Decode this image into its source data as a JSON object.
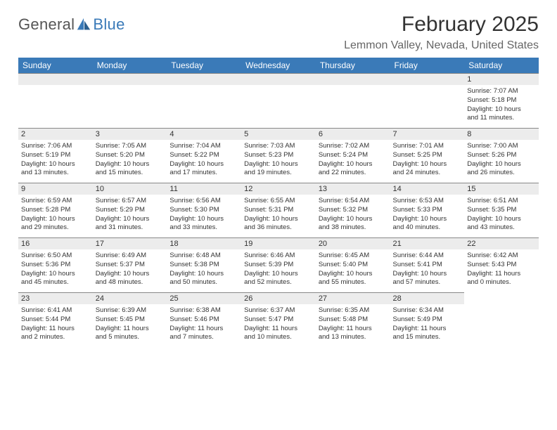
{
  "logo": {
    "text1": "General",
    "text2": "Blue"
  },
  "title": "February 2025",
  "location": "Lemmon Valley, Nevada, United States",
  "colors": {
    "header_bg": "#3a7ab8",
    "header_fg": "#ffffff",
    "daynum_bg": "#ececec",
    "border": "#888888"
  },
  "weekdays": [
    "Sunday",
    "Monday",
    "Tuesday",
    "Wednesday",
    "Thursday",
    "Friday",
    "Saturday"
  ],
  "weeks": [
    [
      {
        "n": ""
      },
      {
        "n": ""
      },
      {
        "n": ""
      },
      {
        "n": ""
      },
      {
        "n": ""
      },
      {
        "n": ""
      },
      {
        "n": "1",
        "sr": "Sunrise: 7:07 AM",
        "ss": "Sunset: 5:18 PM",
        "dl1": "Daylight: 10 hours",
        "dl2": "and 11 minutes."
      }
    ],
    [
      {
        "n": "2",
        "sr": "Sunrise: 7:06 AM",
        "ss": "Sunset: 5:19 PM",
        "dl1": "Daylight: 10 hours",
        "dl2": "and 13 minutes."
      },
      {
        "n": "3",
        "sr": "Sunrise: 7:05 AM",
        "ss": "Sunset: 5:20 PM",
        "dl1": "Daylight: 10 hours",
        "dl2": "and 15 minutes."
      },
      {
        "n": "4",
        "sr": "Sunrise: 7:04 AM",
        "ss": "Sunset: 5:22 PM",
        "dl1": "Daylight: 10 hours",
        "dl2": "and 17 minutes."
      },
      {
        "n": "5",
        "sr": "Sunrise: 7:03 AM",
        "ss": "Sunset: 5:23 PM",
        "dl1": "Daylight: 10 hours",
        "dl2": "and 19 minutes."
      },
      {
        "n": "6",
        "sr": "Sunrise: 7:02 AM",
        "ss": "Sunset: 5:24 PM",
        "dl1": "Daylight: 10 hours",
        "dl2": "and 22 minutes."
      },
      {
        "n": "7",
        "sr": "Sunrise: 7:01 AM",
        "ss": "Sunset: 5:25 PM",
        "dl1": "Daylight: 10 hours",
        "dl2": "and 24 minutes."
      },
      {
        "n": "8",
        "sr": "Sunrise: 7:00 AM",
        "ss": "Sunset: 5:26 PM",
        "dl1": "Daylight: 10 hours",
        "dl2": "and 26 minutes."
      }
    ],
    [
      {
        "n": "9",
        "sr": "Sunrise: 6:59 AM",
        "ss": "Sunset: 5:28 PM",
        "dl1": "Daylight: 10 hours",
        "dl2": "and 29 minutes."
      },
      {
        "n": "10",
        "sr": "Sunrise: 6:57 AM",
        "ss": "Sunset: 5:29 PM",
        "dl1": "Daylight: 10 hours",
        "dl2": "and 31 minutes."
      },
      {
        "n": "11",
        "sr": "Sunrise: 6:56 AM",
        "ss": "Sunset: 5:30 PM",
        "dl1": "Daylight: 10 hours",
        "dl2": "and 33 minutes."
      },
      {
        "n": "12",
        "sr": "Sunrise: 6:55 AM",
        "ss": "Sunset: 5:31 PM",
        "dl1": "Daylight: 10 hours",
        "dl2": "and 36 minutes."
      },
      {
        "n": "13",
        "sr": "Sunrise: 6:54 AM",
        "ss": "Sunset: 5:32 PM",
        "dl1": "Daylight: 10 hours",
        "dl2": "and 38 minutes."
      },
      {
        "n": "14",
        "sr": "Sunrise: 6:53 AM",
        "ss": "Sunset: 5:33 PM",
        "dl1": "Daylight: 10 hours",
        "dl2": "and 40 minutes."
      },
      {
        "n": "15",
        "sr": "Sunrise: 6:51 AM",
        "ss": "Sunset: 5:35 PM",
        "dl1": "Daylight: 10 hours",
        "dl2": "and 43 minutes."
      }
    ],
    [
      {
        "n": "16",
        "sr": "Sunrise: 6:50 AM",
        "ss": "Sunset: 5:36 PM",
        "dl1": "Daylight: 10 hours",
        "dl2": "and 45 minutes."
      },
      {
        "n": "17",
        "sr": "Sunrise: 6:49 AM",
        "ss": "Sunset: 5:37 PM",
        "dl1": "Daylight: 10 hours",
        "dl2": "and 48 minutes."
      },
      {
        "n": "18",
        "sr": "Sunrise: 6:48 AM",
        "ss": "Sunset: 5:38 PM",
        "dl1": "Daylight: 10 hours",
        "dl2": "and 50 minutes."
      },
      {
        "n": "19",
        "sr": "Sunrise: 6:46 AM",
        "ss": "Sunset: 5:39 PM",
        "dl1": "Daylight: 10 hours",
        "dl2": "and 52 minutes."
      },
      {
        "n": "20",
        "sr": "Sunrise: 6:45 AM",
        "ss": "Sunset: 5:40 PM",
        "dl1": "Daylight: 10 hours",
        "dl2": "and 55 minutes."
      },
      {
        "n": "21",
        "sr": "Sunrise: 6:44 AM",
        "ss": "Sunset: 5:41 PM",
        "dl1": "Daylight: 10 hours",
        "dl2": "and 57 minutes."
      },
      {
        "n": "22",
        "sr": "Sunrise: 6:42 AM",
        "ss": "Sunset: 5:43 PM",
        "dl1": "Daylight: 11 hours",
        "dl2": "and 0 minutes."
      }
    ],
    [
      {
        "n": "23",
        "sr": "Sunrise: 6:41 AM",
        "ss": "Sunset: 5:44 PM",
        "dl1": "Daylight: 11 hours",
        "dl2": "and 2 minutes."
      },
      {
        "n": "24",
        "sr": "Sunrise: 6:39 AM",
        "ss": "Sunset: 5:45 PM",
        "dl1": "Daylight: 11 hours",
        "dl2": "and 5 minutes."
      },
      {
        "n": "25",
        "sr": "Sunrise: 6:38 AM",
        "ss": "Sunset: 5:46 PM",
        "dl1": "Daylight: 11 hours",
        "dl2": "and 7 minutes."
      },
      {
        "n": "26",
        "sr": "Sunrise: 6:37 AM",
        "ss": "Sunset: 5:47 PM",
        "dl1": "Daylight: 11 hours",
        "dl2": "and 10 minutes."
      },
      {
        "n": "27",
        "sr": "Sunrise: 6:35 AM",
        "ss": "Sunset: 5:48 PM",
        "dl1": "Daylight: 11 hours",
        "dl2": "and 13 minutes."
      },
      {
        "n": "28",
        "sr": "Sunrise: 6:34 AM",
        "ss": "Sunset: 5:49 PM",
        "dl1": "Daylight: 11 hours",
        "dl2": "and 15 minutes."
      },
      {
        "n": ""
      }
    ]
  ]
}
